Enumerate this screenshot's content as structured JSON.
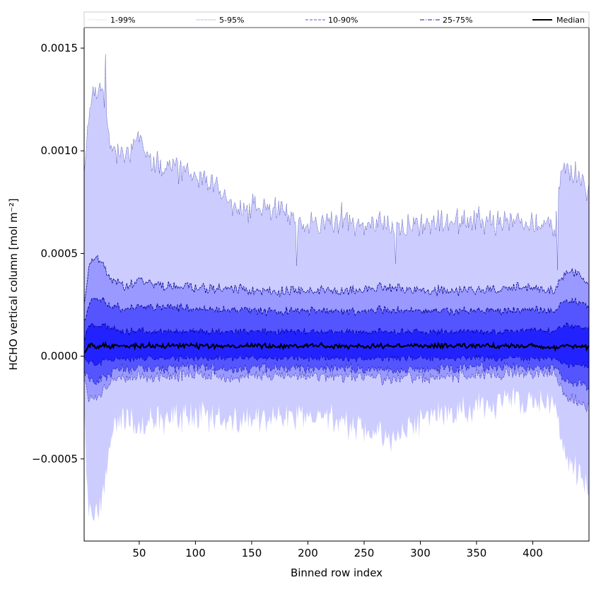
{
  "chart_data": {
    "type": "area",
    "title": "",
    "xlabel": "Binned row index",
    "ylabel": "HCHO vertical column [mol m⁻²]",
    "xlim": [
      1,
      450
    ],
    "ylim": [
      -0.0009,
      0.0016
    ],
    "x_ticks": [
      50,
      100,
      150,
      200,
      250,
      300,
      350,
      400
    ],
    "y_ticks": [
      -0.0005,
      0.0,
      0.0005,
      0.001,
      0.0015
    ],
    "y_tick_labels": [
      "−0.0005",
      "0.0000",
      "0.0005",
      "0.0010",
      "0.0015"
    ],
    "legend": {
      "placement": "top, above axes",
      "entries": [
        "1-99%",
        "5-95%",
        "10-90%",
        "25-75%",
        "Median"
      ]
    },
    "colors": {
      "band_outer": "#ccccff",
      "band_5_95": "#9999ff",
      "band_10_90": "#5555ff",
      "band_25_75": "#2222ff",
      "edge_line": "#00008b",
      "median": "#000000"
    },
    "x_knots": [
      1,
      5,
      10,
      15,
      20,
      25,
      30,
      40,
      50,
      60,
      75,
      100,
      125,
      140,
      150,
      175,
      190,
      200,
      225,
      250,
      275,
      300,
      325,
      350,
      375,
      400,
      420,
      425,
      430,
      440,
      450
    ],
    "series": [
      {
        "name": "p1",
        "values": [
          -0.00025,
          -0.00075,
          -0.00075,
          -0.0007,
          -0.0006,
          -0.0004,
          -0.0003,
          -0.0003,
          -0.00035,
          -0.0003,
          -0.0003,
          -0.00028,
          -0.0003,
          -0.0003,
          -0.00032,
          -0.00028,
          -0.0003,
          -0.00032,
          -0.0003,
          -0.00035,
          -0.0004,
          -0.00032,
          -0.00028,
          -0.00025,
          -0.00022,
          -0.0002,
          -0.0002,
          -0.0004,
          -0.0005,
          -0.00055,
          -0.00065
        ]
      },
      {
        "name": "p5",
        "values": [
          -0.0001,
          -0.0002,
          -0.0002,
          -0.00018,
          -0.00015,
          -0.00012,
          -0.0001,
          -0.0001,
          -0.0001,
          -0.0001,
          -0.0001,
          -9e-05,
          -0.0001,
          -0.0001,
          -0.0001,
          -9e-05,
          -0.0001,
          -0.0001,
          -0.0001,
          -0.0001,
          -0.00011,
          -0.0001,
          -0.0001,
          -9e-05,
          -8e-05,
          -8e-05,
          -8e-05,
          -0.00015,
          -0.0002,
          -0.00022,
          -0.00025
        ]
      },
      {
        "name": "p10",
        "values": [
          -6e-05,
          -0.00012,
          -0.00012,
          -0.00011,
          -0.0001,
          -8e-05,
          -6e-05,
          -6e-05,
          -6e-05,
          -6e-05,
          -6e-05,
          -5e-05,
          -6e-05,
          -6e-05,
          -6e-05,
          -5e-05,
          -6e-05,
          -6e-05,
          -6e-05,
          -6e-05,
          -7e-05,
          -6e-05,
          -6e-05,
          -5e-05,
          -5e-05,
          -5e-05,
          -5e-05,
          -0.0001,
          -0.00012,
          -0.00013,
          -0.00015
        ]
      },
      {
        "name": "p25",
        "values": [
          0.0,
          -3e-05,
          -3e-05,
          -3e-05,
          -2e-05,
          -2e-05,
          -1e-05,
          -1e-05,
          -1e-05,
          -1e-05,
          -1e-05,
          -1e-05,
          -1e-05,
          -1e-05,
          -1e-05,
          -1e-05,
          -1e-05,
          -1e-05,
          -1e-05,
          -1e-05,
          -1e-05,
          -1e-05,
          -1e-05,
          -1e-05,
          -1e-05,
          -1e-05,
          -1e-05,
          -3e-05,
          -4e-05,
          -4e-05,
          -5e-05
        ]
      },
      {
        "name": "Median",
        "values": [
          2e-05,
          5e-05,
          5e-05,
          5e-05,
          5e-05,
          5e-05,
          5e-05,
          5e-05,
          5e-05,
          5e-05,
          5e-05,
          5e-05,
          5e-05,
          5e-05,
          5e-05,
          5e-05,
          5e-05,
          5e-05,
          5e-05,
          5e-05,
          5e-05,
          5e-05,
          5e-05,
          5e-05,
          5e-05,
          5e-05,
          4e-05,
          5e-05,
          5e-05,
          5e-05,
          4e-05
        ]
      },
      {
        "name": "p75",
        "values": [
          8e-05,
          0.00015,
          0.00015,
          0.00015,
          0.00015,
          0.00014,
          0.00013,
          0.00012,
          0.00013,
          0.00012,
          0.00012,
          0.00012,
          0.00012,
          0.00012,
          0.00012,
          0.00012,
          0.00012,
          0.00012,
          0.00012,
          0.00012,
          0.00012,
          0.00012,
          0.00012,
          0.00012,
          0.00012,
          0.00013,
          0.00012,
          0.00014,
          0.00015,
          0.00014,
          0.00013
        ]
      },
      {
        "name": "p90",
        "values": [
          0.00017,
          0.00025,
          0.00028,
          0.00028,
          0.00026,
          0.00025,
          0.00024,
          0.00023,
          0.00025,
          0.00024,
          0.00024,
          0.00023,
          0.00023,
          0.00023,
          0.00022,
          0.00022,
          0.00022,
          0.00022,
          0.00022,
          0.00022,
          0.00023,
          0.00022,
          0.00022,
          0.00022,
          0.00022,
          0.00023,
          0.00022,
          0.00026,
          0.00027,
          0.00026,
          0.00024
        ]
      },
      {
        "name": "p95",
        "values": [
          0.00025,
          0.00043,
          0.00048,
          0.00048,
          0.00042,
          0.00038,
          0.00036,
          0.00034,
          0.00037,
          0.00035,
          0.00034,
          0.00033,
          0.00033,
          0.00033,
          0.00032,
          0.00032,
          0.00032,
          0.00032,
          0.00032,
          0.00033,
          0.00034,
          0.00032,
          0.00032,
          0.00032,
          0.00033,
          0.00034,
          0.00032,
          0.00038,
          0.00042,
          0.0004,
          0.00035
        ]
      },
      {
        "name": "p99",
        "values": [
          0.0009,
          0.00115,
          0.0013,
          0.0013,
          0.0012,
          0.00105,
          0.001,
          0.001,
          0.00105,
          0.00095,
          0.00092,
          0.00088,
          0.0008,
          0.0007,
          0.00072,
          0.00072,
          0.00065,
          0.00063,
          0.00065,
          0.00065,
          0.00063,
          0.00065,
          0.00065,
          0.00067,
          0.00065,
          0.00065,
          0.00062,
          0.0009,
          0.0009,
          0.00088,
          0.0008
        ]
      }
    ],
    "spikes": [
      {
        "x": 20,
        "p99": 0.00147
      },
      {
        "x": 190,
        "p99": 0.00044
      },
      {
        "x": 230,
        "p99": 0.00075
      },
      {
        "x": 278,
        "p99": 0.00045
      },
      {
        "x": 422,
        "p99": 0.00042
      }
    ]
  }
}
